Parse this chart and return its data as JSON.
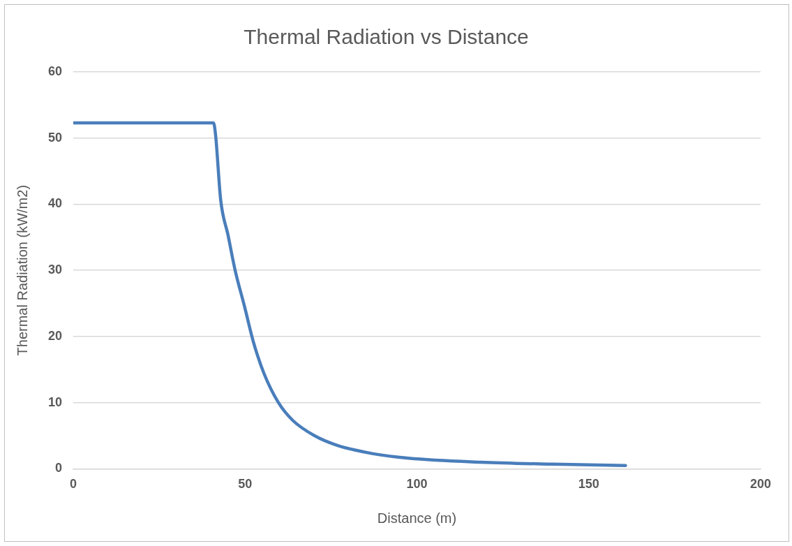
{
  "chart_data": {
    "type": "line",
    "title": "Thermal Radiation vs Distance",
    "xlabel": "Distance (m)",
    "ylabel": "Thermal Radiation (kW/m2)",
    "xlim": [
      0,
      200
    ],
    "xticks": [
      0,
      50,
      100,
      150,
      200
    ],
    "ylim": [
      0,
      60
    ],
    "yticks": [
      0,
      10,
      20,
      30,
      40,
      50,
      60
    ],
    "grid": "y",
    "marker": "none",
    "line_style": "solid",
    "series": [
      {
        "color": "#4a7ebb",
        "x": [
          0,
          10,
          20,
          30,
          40.8,
          41.4,
          42.9,
          45,
          47.1,
          49.8,
          52.4,
          55.5,
          59.7,
          63.9,
          70.2,
          76.5,
          87,
          97.6,
          118.6,
          139.6,
          160.7
        ],
        "values": [
          52.3,
          52.3,
          52.3,
          52.3,
          52.3,
          50.5,
          40.6,
          35.4,
          30,
          24.6,
          19.2,
          14.4,
          10,
          7.3,
          5,
          3.6,
          2.3,
          1.6,
          1,
          0.7,
          0.5
        ]
      }
    ]
  }
}
